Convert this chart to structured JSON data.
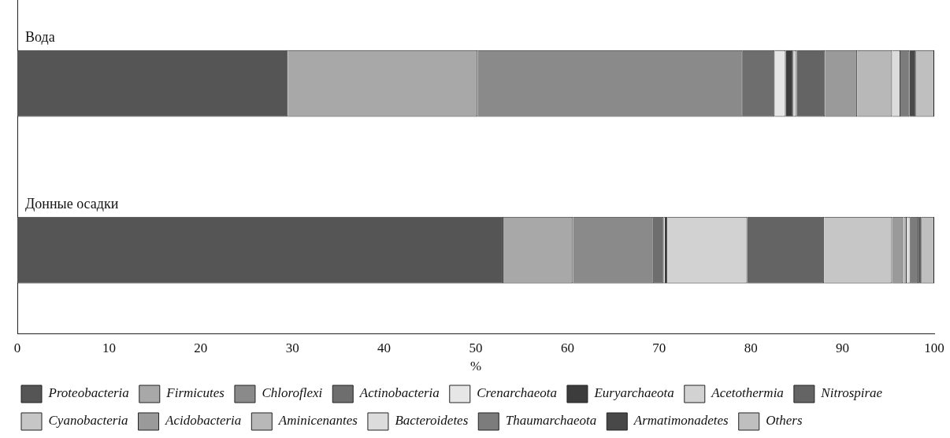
{
  "chart_data": {
    "type": "bar",
    "orientation": "horizontal",
    "stacked": true,
    "xlabel": "%",
    "categories": [
      "Вода",
      "Донные осадки"
    ],
    "xlim": [
      0,
      100
    ],
    "xticks": [
      0,
      10,
      20,
      30,
      40,
      50,
      60,
      70,
      80,
      90,
      100
    ],
    "grid": false,
    "legend": "bottom",
    "series": [
      {
        "name": "Proteobacteria",
        "color": "#555555",
        "values": [
          29.5,
          53.0
        ]
      },
      {
        "name": "Firmicutes",
        "color": "#a8a8a8",
        "values": [
          20.7,
          7.6
        ]
      },
      {
        "name": "Chloroflexi",
        "color": "#8a8a8a",
        "values": [
          28.9,
          8.8
        ]
      },
      {
        "name": "Actinobacteria",
        "color": "#6e6e6e",
        "values": [
          3.5,
          1.1
        ]
      },
      {
        "name": "Crenarchaeota",
        "color": "#e6e6e6",
        "values": [
          1.2,
          0.2
        ]
      },
      {
        "name": "Euryarchaeota",
        "color": "#3c3c3c",
        "values": [
          0.8,
          0.2
        ]
      },
      {
        "name": "Acetothermia",
        "color": "#d2d2d2",
        "values": [
          0.4,
          8.7
        ]
      },
      {
        "name": "Nitrospirae",
        "color": "#646464",
        "values": [
          3.1,
          8.4
        ]
      },
      {
        "name": "Cyanobacteria",
        "color": "#c6c6c6",
        "values": [
          0,
          7.4
        ]
      },
      {
        "name": "Acidobacteria",
        "color": "#9a9a9a",
        "values": [
          3.5,
          1.2
        ]
      },
      {
        "name": "Aminicenantes",
        "color": "#b8b8b8",
        "values": [
          3.8,
          0.4
        ]
      },
      {
        "name": "Bacteroidetes",
        "color": "#dcdcdc",
        "values": [
          0.9,
          0.4
        ]
      },
      {
        "name": "Thaumarchaeota",
        "color": "#7c7c7c",
        "values": [
          1.0,
          0.9
        ]
      },
      {
        "name": "Armatimonadetes",
        "color": "#484848",
        "values": [
          0.7,
          0.3
        ]
      },
      {
        "name": "Others",
        "color": "#bfbfbf",
        "values": [
          2.0,
          1.4
        ]
      }
    ]
  }
}
